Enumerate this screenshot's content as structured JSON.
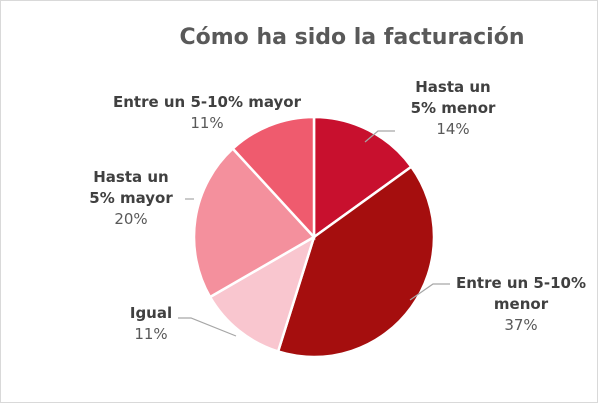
{
  "chart_data": {
    "type": "pie",
    "title": "Cómo ha sido la facturación",
    "unit": "%",
    "slices": [
      {
        "label_lines": [
          "Hasta un",
          "5% menor"
        ],
        "value": 14,
        "value_label": "14%",
        "color": "#C8102E"
      },
      {
        "label_lines": [
          "Entre un 5-10%",
          "menor"
        ],
        "value": 37,
        "value_label": "37%",
        "color": "#A50E0E"
      },
      {
        "label_lines": [
          "Igual"
        ],
        "value": 11,
        "value_label": "11%",
        "color": "#F9C6CF"
      },
      {
        "label_lines": [
          "Hasta un",
          "5% mayor"
        ],
        "value": 20,
        "value_label": "20%",
        "color": "#F4909D"
      },
      {
        "label_lines": [
          "Entre un 5-10% mayor"
        ],
        "value": 11,
        "value_label": "11%",
        "color": "#EF5B6E"
      }
    ],
    "legend": "none"
  }
}
